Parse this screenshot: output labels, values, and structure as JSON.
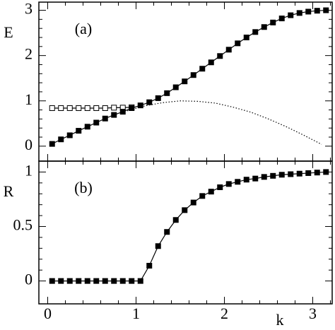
{
  "chart_data": [
    {
      "type": "line",
      "annotation": "(a)",
      "ylabel": "E",
      "xlim": [
        -0.1,
        3.22
      ],
      "ylim": [
        -0.33,
        3.18
      ],
      "xticks": [
        0,
        1,
        2,
        3
      ],
      "yticks": [
        0,
        1,
        2,
        3
      ],
      "xminor": [
        0.2,
        0.4,
        0.6,
        0.8,
        1.2,
        1.4,
        1.6,
        1.8,
        2.2,
        2.4,
        2.6,
        2.8,
        3.2
      ],
      "yminor": [
        0.2,
        0.4,
        0.6,
        0.8,
        1.2,
        1.4,
        1.6,
        1.8,
        2.2,
        2.4,
        2.6,
        2.8
      ],
      "series": [
        {
          "marker": "open-square",
          "line": "solid",
          "color": "#000000",
          "x": [
            0.05,
            0.15,
            0.25,
            0.35,
            0.45,
            0.55,
            0.65,
            0.75,
            0.85,
            0.95
          ],
          "values": [
            0.84,
            0.84,
            0.84,
            0.84,
            0.84,
            0.84,
            0.84,
            0.85,
            0.85,
            0.86
          ]
        },
        {
          "marker": "none",
          "line": "dotted",
          "color": "#000000",
          "x": [
            0.9,
            1.1,
            1.3,
            1.5,
            1.7,
            1.9,
            2.1,
            2.3,
            2.5,
            2.7,
            2.9,
            3.1
          ],
          "values": [
            0.78,
            0.89,
            0.96,
            1.0,
            0.99,
            0.95,
            0.86,
            0.75,
            0.6,
            0.43,
            0.24,
            0.04
          ]
        },
        {
          "marker": "filled-square",
          "line": "solid",
          "color": "#000000",
          "x": [
            0.05,
            0.15,
            0.25,
            0.35,
            0.45,
            0.55,
            0.65,
            0.75,
            0.85,
            0.95,
            1.05,
            1.15,
            1.25,
            1.35,
            1.45,
            1.55,
            1.65,
            1.75,
            1.85,
            1.95,
            2.05,
            2.15,
            2.25,
            2.35,
            2.45,
            2.55,
            2.65,
            2.75,
            2.85,
            2.95,
            3.05,
            3.15
          ],
          "values": [
            0.05,
            0.15,
            0.24,
            0.34,
            0.43,
            0.52,
            0.61,
            0.69,
            0.76,
            0.84,
            0.9,
            0.97,
            1.06,
            1.17,
            1.3,
            1.43,
            1.57,
            1.71,
            1.85,
            1.99,
            2.13,
            2.27,
            2.4,
            2.52,
            2.63,
            2.73,
            2.82,
            2.89,
            2.94,
            2.97,
            2.99,
            3.0
          ]
        }
      ]
    },
    {
      "type": "line",
      "annotation": "(b)",
      "ylabel": "R",
      "xlabel": "k",
      "xlim": [
        -0.1,
        3.22
      ],
      "ylim": [
        -0.21,
        1.1
      ],
      "xticks": [
        0,
        1,
        2,
        3
      ],
      "yticks": [
        0,
        0.5,
        1
      ],
      "xminor": [
        0.2,
        0.4,
        0.6,
        0.8,
        1.2,
        1.4,
        1.6,
        1.8,
        2.2,
        2.4,
        2.6,
        2.8,
        3.2
      ],
      "yminor": [
        0.1,
        0.2,
        0.3,
        0.4,
        0.6,
        0.7,
        0.8,
        0.9
      ],
      "series": [
        {
          "marker": "filled-square",
          "line": "solid",
          "color": "#000000",
          "x": [
            0.05,
            0.15,
            0.25,
            0.35,
            0.45,
            0.55,
            0.65,
            0.75,
            0.85,
            0.95,
            1.05,
            1.15,
            1.25,
            1.35,
            1.45,
            1.55,
            1.65,
            1.75,
            1.85,
            1.95,
            2.05,
            2.15,
            2.25,
            2.35,
            2.45,
            2.55,
            2.65,
            2.75,
            2.85,
            2.95,
            3.05,
            3.15
          ],
          "values": [
            0,
            0,
            0,
            0,
            0,
            0,
            0,
            0,
            0,
            0,
            0,
            0.14,
            0.32,
            0.45,
            0.56,
            0.65,
            0.72,
            0.78,
            0.82,
            0.86,
            0.89,
            0.91,
            0.93,
            0.94,
            0.955,
            0.965,
            0.975,
            0.98,
            0.985,
            0.99,
            0.995,
            1.0
          ]
        }
      ]
    }
  ]
}
